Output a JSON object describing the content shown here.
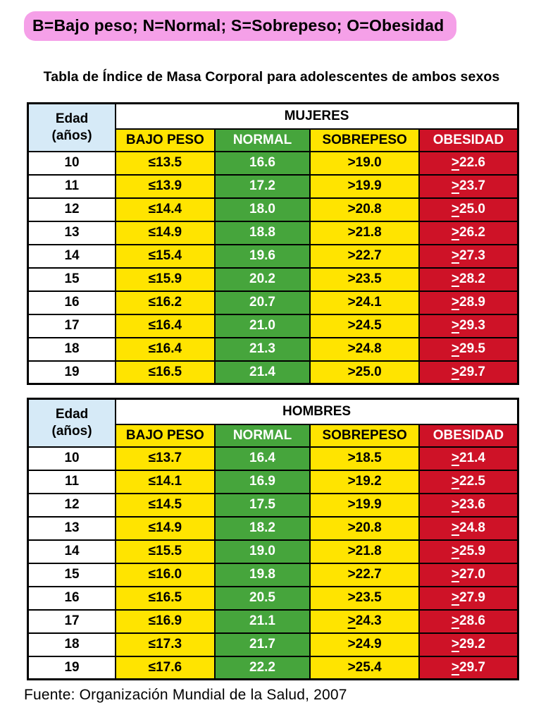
{
  "legend": {
    "text": "B=Bajo peso; N=Normal; S=Sobrepeso; O=Obesidad"
  },
  "title": "Tabla de Índice de Masa Corporal para adolescentes de ambos sexos",
  "source": "Fuente: Organización Mundial de la Salud, 2007",
  "colors": {
    "legend_bg": "#F5A0E8",
    "age_header_bg": "#D6EAF7",
    "underweight_bg": "#FFE400",
    "normal_bg": "#46A53C",
    "obesity_bg": "#CE1227"
  },
  "age_header": {
    "line1": "Edad",
    "line2": "(años)"
  },
  "tables": [
    {
      "group": "MUJERES",
      "columns": [
        "BAJO PESO",
        "NORMAL",
        "SOBREPESO",
        "OBESIDAD"
      ],
      "rows": [
        [
          "10",
          "≤13.5",
          "16.6",
          ">19.0",
          "≥22.6"
        ],
        [
          "11",
          "≤13.9",
          "17.2",
          ">19.9",
          "≥23.7"
        ],
        [
          "12",
          "≤14.4",
          "18.0",
          ">20.8",
          "≥25.0"
        ],
        [
          "13",
          "≤14.9",
          "18.8",
          ">21.8",
          "≥26.2"
        ],
        [
          "14",
          "≤15.4",
          "19.6",
          ">22.7",
          "≥27.3"
        ],
        [
          "15",
          "≤15.9",
          "20.2",
          ">23.5",
          "≥28.2"
        ],
        [
          "16",
          "≤16.2",
          "20.7",
          ">24.1",
          "≥28.9"
        ],
        [
          "17",
          "≤16.4",
          "21.0",
          ">24.5",
          "≥29.3"
        ],
        [
          "18",
          "≤16.4",
          "21.3",
          ">24.8",
          "≥29.5"
        ],
        [
          "19",
          "≤16.5",
          "21.4",
          ">25.0",
          "≥29.7"
        ]
      ]
    },
    {
      "group": "HOMBRES",
      "columns": [
        "BAJO PESO",
        "NORMAL",
        "SOBREPESO",
        "OBESIDAD"
      ],
      "rows": [
        [
          "10",
          "≤13.7",
          "16.4",
          ">18.5",
          "≥21.4"
        ],
        [
          "11",
          "≤14.1",
          "16.9",
          ">19.2",
          "≥22.5"
        ],
        [
          "12",
          "≤14.5",
          "17.5",
          ">19.9",
          "≥23.6"
        ],
        [
          "13",
          "≤14.9",
          "18.2",
          ">20.8",
          "≥24.8"
        ],
        [
          "14",
          "≤15.5",
          "19.0",
          ">21.8",
          "≥25.9"
        ],
        [
          "15",
          "≤16.0",
          "19.8",
          ">22.7",
          "≥27.0"
        ],
        [
          "16",
          "≤16.5",
          "20.5",
          ">23.5",
          "≥27.9"
        ],
        [
          "17",
          "≤16.9",
          "21.1",
          "≥24.3",
          "≥28.6"
        ],
        [
          "18",
          "≤17.3",
          "21.7",
          ">24.9",
          "≥29.2"
        ],
        [
          "19",
          "≤17.6",
          "22.2",
          ">25.4",
          "≥29.7"
        ]
      ]
    }
  ]
}
